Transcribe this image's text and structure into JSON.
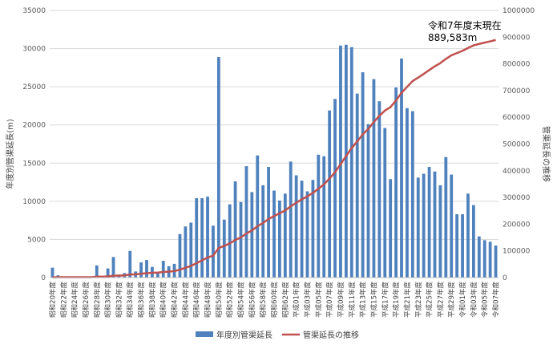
{
  "chart_data": {
    "type": "bar",
    "ylabel": "年度別管渠延長(m)",
    "y2label": "管渠延長の推移",
    "ylim": [
      0,
      35000
    ],
    "y2lim": [
      0,
      1000000
    ],
    "yticks": [
      0,
      5000,
      10000,
      15000,
      20000,
      25000,
      30000,
      35000
    ],
    "y2ticks": [
      0,
      100000,
      200000,
      300000,
      400000,
      500000,
      600000,
      700000,
      800000,
      900000,
      1000000
    ],
    "grid": true,
    "legend_position": "bottom",
    "colors": {
      "bar": "#4f81bd",
      "line": "#c0504d"
    },
    "categories": [
      "昭和20年度",
      "昭和21年度",
      "昭和22年度",
      "昭和23年度",
      "昭和24年度",
      "昭和25年度",
      "昭和26年度",
      "昭和27年度",
      "昭和28年度",
      "昭和29年度",
      "昭和30年度",
      "昭和31年度",
      "昭和32年度",
      "昭和33年度",
      "昭和34年度",
      "昭和35年度",
      "昭和36年度",
      "昭和37年度",
      "昭和38年度",
      "昭和39年度",
      "昭和40年度",
      "昭和41年度",
      "昭和42年度",
      "昭和43年度",
      "昭和44年度",
      "昭和45年度",
      "昭和46年度",
      "昭和47年度",
      "昭和48年度",
      "昭和49年度",
      "昭和50年度",
      "昭和51年度",
      "昭和52年度",
      "昭和53年度",
      "昭和54年度",
      "昭和55年度",
      "昭和56年度",
      "昭和57年度",
      "昭和58年度",
      "昭和59年度",
      "昭和60年度",
      "昭和61年度",
      "昭和62年度",
      "昭和63年度",
      "平成01年度",
      "平成02年度",
      "平成03年度",
      "平成04年度",
      "平成05年度",
      "平成06年度",
      "平成07年度",
      "平成08年度",
      "平成09年度",
      "平成10年度",
      "平成11年度",
      "平成12年度",
      "平成13年度",
      "平成14年度",
      "平成15年度",
      "平成16年度",
      "平成17年度",
      "平成18年度",
      "平成19年度",
      "平成20年度",
      "平成21年度",
      "平成22年度",
      "平成23年度",
      "平成24年度",
      "平成25年度",
      "平成26年度",
      "平成27年度",
      "平成28年度",
      "平成29年度",
      "平成30年度",
      "令和01年度",
      "令和02年度",
      "令和03年度",
      "令和04年度",
      "令和05年度",
      "令和06年度",
      "令和07年度"
    ],
    "series": [
      {
        "name": "年度別管渠延長",
        "type": "bar",
        "axis": "left",
        "values": [
          1300,
          300,
          0,
          0,
          0,
          0,
          0,
          0,
          1600,
          0,
          1200,
          2700,
          400,
          600,
          3500,
          800,
          2000,
          2300,
          1400,
          600,
          2200,
          1500,
          1800,
          5700,
          6700,
          7200,
          10400,
          10400,
          10600,
          6800,
          28900,
          7600,
          9600,
          12600,
          9900,
          14600,
          11200,
          16000,
          12100,
          14500,
          11400,
          10100,
          11000,
          15200,
          13400,
          12700,
          11300,
          12800,
          16100,
          15900,
          21900,
          23400,
          30400,
          30500,
          30200,
          24100,
          26900,
          20100,
          26000,
          23100,
          19600,
          12900,
          24900,
          28700,
          22200,
          21800,
          13100,
          13600,
          14500,
          13900,
          12100,
          15800,
          13500,
          8300,
          8300,
          11000,
          9500,
          5400,
          4900,
          4700,
          4200
        ]
      },
      {
        "name": "管渠延長の推移",
        "type": "line",
        "axis": "right",
        "values": [
          1300,
          1600,
          1600,
          1600,
          1600,
          1600,
          1600,
          1600,
          3200,
          3200,
          4400,
          7100,
          7500,
          8100,
          11600,
          12400,
          14400,
          16700,
          18100,
          18700,
          20900,
          22400,
          24200,
          29900,
          36600,
          43800,
          54200,
          64600,
          75200,
          82000,
          110900,
          118500,
          128100,
          140700,
          150600,
          165200,
          176400,
          192400,
          204500,
          219000,
          230400,
          240500,
          251500,
          266700,
          280100,
          292800,
          304100,
          316900,
          333000,
          348900,
          370800,
          394200,
          424600,
          455100,
          485300,
          509400,
          536300,
          556400,
          582400,
          605500,
          625100,
          638000,
          662900,
          691600,
          713800,
          735600,
          748700,
          762300,
          776800,
          790700,
          802800,
          818600,
          832100,
          840400,
          848700,
          859700,
          869200,
          874600,
          879500,
          884200,
          889583
        ]
      }
    ],
    "annotation": {
      "line1": "令和7年度末現在",
      "line2": "889,583m"
    }
  }
}
